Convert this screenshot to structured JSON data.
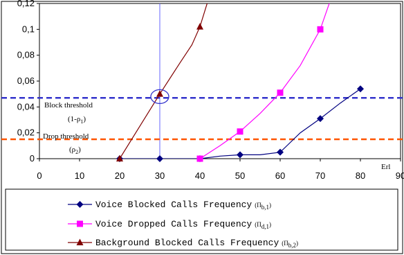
{
  "chart_data": {
    "type": "line",
    "xlabel": "Erl",
    "ylabel": "",
    "xlim": [
      0,
      90
    ],
    "ylim": [
      0,
      0.12
    ],
    "x_ticks": [
      "0",
      "10",
      "20",
      "30",
      "40",
      "50",
      "60",
      "70",
      "80",
      "90"
    ],
    "y_ticks": [
      "0",
      "0,02",
      "0,04",
      "0,06",
      "0,08",
      "0,1",
      "0,12"
    ],
    "x_tick_values": [
      0,
      10,
      20,
      30,
      40,
      50,
      60,
      70,
      80,
      90
    ],
    "y_tick_values": [
      0,
      0.02,
      0.04,
      0.06,
      0.08,
      0.1,
      0.12
    ],
    "grid": false,
    "legend_position": "bottom",
    "series": [
      {
        "id": "voice-blocked",
        "name": "Voice Blocked Calls Frequency",
        "symbol": "Π",
        "subscript": "b,1",
        "color": "#000080",
        "marker": "diamond",
        "points": [
          [
            20,
            0
          ],
          [
            30,
            0
          ],
          [
            40,
            0
          ],
          [
            50,
            0.003
          ],
          [
            60,
            0.005
          ],
          [
            70,
            0.031
          ],
          [
            80,
            0.054
          ]
        ],
        "line": [
          [
            20,
            0
          ],
          [
            30,
            0
          ],
          [
            40,
            0
          ],
          [
            45,
            0.002
          ],
          [
            50,
            0.003
          ],
          [
            55,
            0.003
          ],
          [
            60,
            0.005
          ],
          [
            62,
            0.011
          ],
          [
            65,
            0.02
          ],
          [
            70,
            0.031
          ],
          [
            75,
            0.043
          ],
          [
            80,
            0.054
          ]
        ]
      },
      {
        "id": "voice-dropped",
        "name": "Voice Dropped Calls Frequency",
        "symbol": "Π",
        "subscript": "d,1",
        "color": "#ff00ff",
        "marker": "square",
        "points": [
          [
            40,
            0
          ],
          [
            50,
            0.021
          ],
          [
            60,
            0.051
          ],
          [
            70,
            0.1
          ]
        ],
        "line": [
          [
            40,
            0
          ],
          [
            45,
            0.01
          ],
          [
            50,
            0.021
          ],
          [
            55,
            0.035
          ],
          [
            60,
            0.051
          ],
          [
            65,
            0.072
          ],
          [
            70,
            0.1
          ],
          [
            72.8,
            0.125
          ]
        ]
      },
      {
        "id": "background-blocked",
        "name": "Background Blocked Calls Frequency",
        "symbol": "Π",
        "subscript": "b,2",
        "color": "#800000",
        "marker": "triangle",
        "points": [
          [
            20,
            0
          ],
          [
            30,
            0.05
          ],
          [
            40,
            0.102
          ]
        ],
        "line": [
          [
            20,
            0
          ],
          [
            25,
            0.025
          ],
          [
            30,
            0.05
          ],
          [
            35,
            0.074
          ],
          [
            38,
            0.088
          ],
          [
            40,
            0.102
          ],
          [
            42.3,
            0.125
          ]
        ]
      }
    ],
    "thresholds": [
      {
        "id": "block-threshold",
        "label": "Block threshold",
        "sublabel": "(1-ρ",
        "sublabel_sub": "1",
        "sublabel_end": ")",
        "y": 0.047,
        "color": "#3333cc"
      },
      {
        "id": "drop-threshold",
        "label": "Drop threshold",
        "sublabel": "(ρ",
        "sublabel_sub": "2",
        "sublabel_end": ")",
        "y": 0.015,
        "color": "#ff5500"
      }
    ],
    "reference_line": {
      "x": 30,
      "color": "#6666ff"
    },
    "highlight": {
      "x": 30,
      "y": 0.048,
      "color": "#3333cc"
    }
  }
}
